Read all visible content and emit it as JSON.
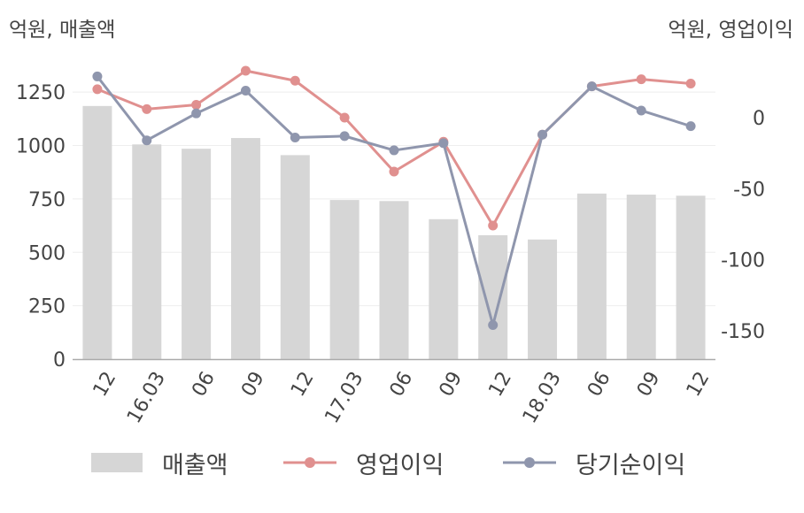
{
  "units": {
    "left": "억원, 매출액",
    "right": "억원, 영업이익"
  },
  "legend": {
    "revenue": "매출액",
    "operating_profit": "영업이익",
    "net_income": "당기순이익"
  },
  "colors": {
    "bar": "#d6d6d6",
    "operating_profit": "#e0908f",
    "net_income": "#8f96ad",
    "axis": "#aaaaaa",
    "grid": "#eeeeee",
    "text": "#444444"
  },
  "chart_data": {
    "type": "bar+line",
    "categories": [
      "12",
      "16.03",
      "06",
      "09",
      "12",
      "17.03",
      "06",
      "09",
      "12",
      "18.03",
      "06",
      "09",
      "12"
    ],
    "y_left": {
      "unit": "억원, 매출액",
      "ylim": [
        0,
        1350
      ],
      "ticks": [
        0,
        250,
        500,
        750,
        1000,
        1250
      ]
    },
    "y_right": {
      "unit": "억원, 영업이익",
      "ylim": [
        -170,
        33
      ],
      "ticks": [
        0,
        -50,
        -100,
        -150
      ]
    },
    "series": [
      {
        "name": "매출액",
        "type": "bar",
        "axis": "left",
        "values": [
          1185,
          1005,
          985,
          1035,
          955,
          745,
          740,
          655,
          580,
          560,
          775,
          770,
          765
        ]
      },
      {
        "name": "영업이익",
        "type": "line",
        "axis": "right",
        "values": [
          20,
          6,
          9,
          33,
          26,
          0,
          -38,
          -17,
          -76,
          -12,
          22,
          27,
          24
        ]
      },
      {
        "name": "당기순이익",
        "type": "line",
        "axis": "right",
        "values": [
          29,
          -16,
          3,
          19,
          -14,
          -13,
          -23,
          -18,
          -146,
          -12,
          22,
          5,
          -6
        ]
      }
    ],
    "grid": true,
    "legend_position": "bottom"
  }
}
